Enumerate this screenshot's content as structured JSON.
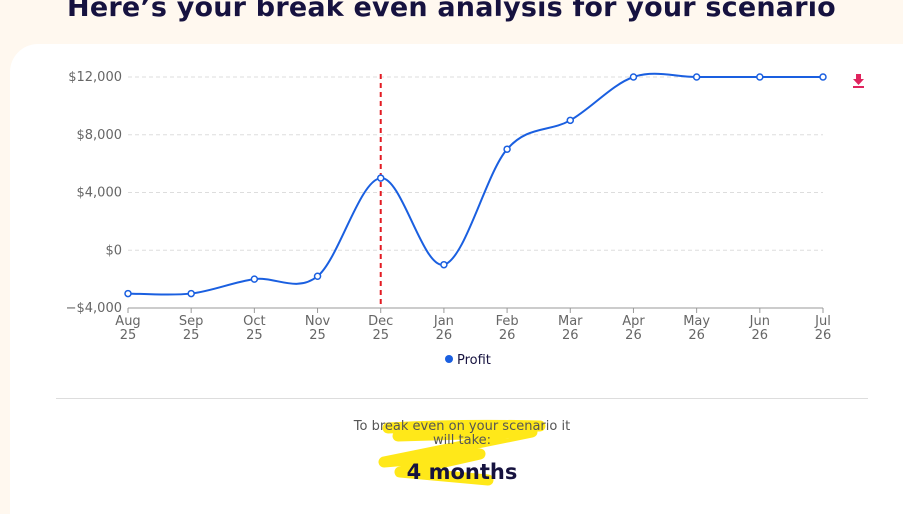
{
  "header": {
    "title": "Here’s your break even analysis for your scenario"
  },
  "chart_data": {
    "type": "line",
    "categories": [
      "Aug 25",
      "Sep 25",
      "Oct 25",
      "Nov 25",
      "Dec 25",
      "Jan 26",
      "Feb 26",
      "Mar 26",
      "Apr 26",
      "May 26",
      "Jun 26",
      "Jul 26"
    ],
    "series": [
      {
        "name": "Profit",
        "color": "#1a5fe0",
        "values": [
          -3000,
          -3000,
          -2000,
          -1800,
          5000,
          -1000,
          7000,
          9000,
          12000,
          12000,
          12000,
          12000
        ]
      }
    ],
    "ylim": [
      -4000,
      12000
    ],
    "yticks": [
      {
        "value": -4000,
        "label": "−$4,000"
      },
      {
        "value": 0,
        "label": "$0"
      },
      {
        "value": 4000,
        "label": "$4,000"
      },
      {
        "value": 8000,
        "label": "$8,000"
      },
      {
        "value": 12000,
        "label": "$12,000"
      }
    ],
    "grid": true,
    "reference_line": {
      "x": "Dec 25",
      "color": "#e31b23"
    }
  },
  "result": {
    "intro": "To break even on your scenario it will take:",
    "duration": "4 months"
  }
}
